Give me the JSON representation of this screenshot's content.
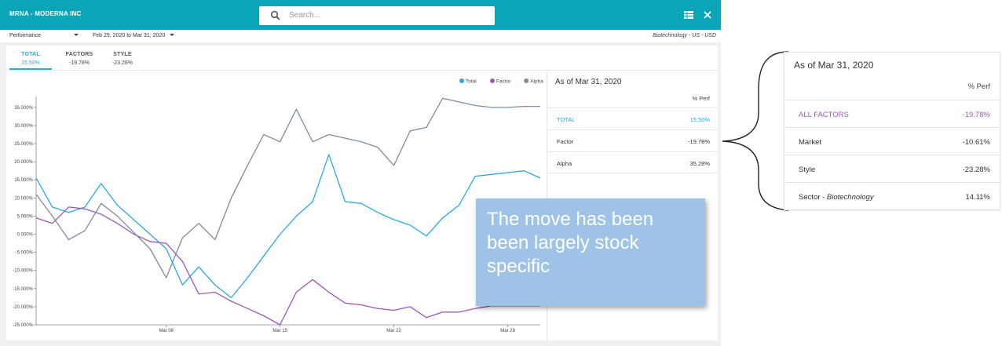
{
  "titlebar": {
    "title": "MRNA - MODERNA INC",
    "search_placeholder": "Search..."
  },
  "toolbar": {
    "metric": "Performance",
    "date_range": "Feb 29, 2020 to Mar 31, 2020",
    "context": "Biotechnology - US - USD"
  },
  "tabs": [
    {
      "label": "TOTAL",
      "value": "15.50%"
    },
    {
      "label": "FACTORS",
      "value": "-19.78%"
    },
    {
      "label": "STYLE",
      "value": "-23.28%"
    }
  ],
  "side_panel": {
    "header": "As of Mar 31, 2020",
    "column_header": "% Perf",
    "rows": [
      {
        "name": "TOTAL",
        "value": "15.50%"
      },
      {
        "name": "Factor",
        "value": "-19.78%"
      },
      {
        "name": "Alpha",
        "value": "35.28%"
      }
    ]
  },
  "callout": {
    "text": "The move has been been largely stock specific"
  },
  "zoom_panel": {
    "header": "As of Mar 31, 2020",
    "column_header": "% Perf",
    "rows": [
      {
        "name": "ALL FACTORS",
        "value": "-19.78%"
      },
      {
        "name": "Market",
        "value": "-10.61%"
      },
      {
        "name": "Style",
        "value": "-23.28%"
      },
      {
        "name_prefix": "Sector - ",
        "name_italic": "Biotechnology",
        "value": "14.11%"
      }
    ]
  },
  "colors": {
    "header": "#0aa6b8",
    "total": "#29a9e0",
    "factor": "#9b59b6",
    "alpha": "#7f8c9a",
    "callout": "#9fc3e7"
  },
  "chart_data": {
    "type": "line",
    "x_start": "2020-02-29",
    "x_end": "2020-03-31",
    "x_ticks": [
      "Mar 08",
      "Mar 15",
      "Mar 22",
      "Mar 29"
    ],
    "y_ticks": [
      "35.000%",
      "30.000%",
      "25.000%",
      "20.000%",
      "15.000%",
      "10.000%",
      "5.000%",
      "0.000%",
      "-5.000%",
      "-10.000%",
      "-15.000%",
      "-20.000%",
      "-25.000%"
    ],
    "ylim": [
      -25,
      38
    ],
    "legend": [
      "Total",
      "Factor",
      "Alpha"
    ],
    "legend_position": "top-right",
    "series": [
      {
        "name": "Total",
        "color": "#29a9e0",
        "x": [
          "2020-02-29",
          "2020-03-01",
          "2020-03-02",
          "2020-03-03",
          "2020-03-04",
          "2020-03-05",
          "2020-03-06",
          "2020-03-07",
          "2020-03-08",
          "2020-03-09",
          "2020-03-10",
          "2020-03-11",
          "2020-03-12",
          "2020-03-13",
          "2020-03-14",
          "2020-03-15",
          "2020-03-16",
          "2020-03-17",
          "2020-03-18",
          "2020-03-19",
          "2020-03-20",
          "2020-03-21",
          "2020-03-22",
          "2020-03-23",
          "2020-03-24",
          "2020-03-25",
          "2020-03-26",
          "2020-03-27",
          "2020-03-28",
          "2020-03-29",
          "2020-03-30",
          "2020-03-31"
        ],
        "y": [
          15.5,
          7.5,
          6,
          7.5,
          14,
          8,
          4,
          0,
          -4,
          -14,
          -9,
          -14,
          -17.5,
          -12,
          -6,
          0,
          5,
          9,
          22,
          9,
          8.5,
          6,
          4,
          2.5,
          -0.5,
          4.5,
          8,
          16,
          16.5,
          17,
          17.5,
          15.5
        ]
      },
      {
        "name": "Factor",
        "color": "#9b59b6",
        "x": [
          "2020-02-29",
          "2020-03-01",
          "2020-03-02",
          "2020-03-03",
          "2020-03-04",
          "2020-03-05",
          "2020-03-06",
          "2020-03-07",
          "2020-03-08",
          "2020-03-09",
          "2020-03-10",
          "2020-03-11",
          "2020-03-12",
          "2020-03-13",
          "2020-03-14",
          "2020-03-15",
          "2020-03-16",
          "2020-03-17",
          "2020-03-18",
          "2020-03-19",
          "2020-03-20",
          "2020-03-21",
          "2020-03-22",
          "2020-03-23",
          "2020-03-24",
          "2020-03-25",
          "2020-03-26",
          "2020-03-27",
          "2020-03-28",
          "2020-03-29",
          "2020-03-30",
          "2020-03-31"
        ],
        "y": [
          4.5,
          3,
          7.5,
          7,
          5.5,
          3,
          0,
          -2,
          -2.5,
          -7.5,
          -16.5,
          -16,
          -18.5,
          -20.5,
          -22.5,
          -25,
          -16,
          -12.5,
          -16,
          -19,
          -19.5,
          -20.5,
          -21,
          -20,
          -23,
          -21.5,
          -21.5,
          -20.5,
          -19.78,
          -19.78,
          -19.78,
          -19.78
        ]
      },
      {
        "name": "Alpha",
        "color": "#7f8c9a",
        "x": [
          "2020-02-29",
          "2020-03-01",
          "2020-03-02",
          "2020-03-03",
          "2020-03-04",
          "2020-03-05",
          "2020-03-06",
          "2020-03-07",
          "2020-03-08",
          "2020-03-09",
          "2020-03-10",
          "2020-03-11",
          "2020-03-12",
          "2020-03-13",
          "2020-03-14",
          "2020-03-15",
          "2020-03-16",
          "2020-03-17",
          "2020-03-18",
          "2020-03-19",
          "2020-03-20",
          "2020-03-21",
          "2020-03-22",
          "2020-03-23",
          "2020-03-24",
          "2020-03-25",
          "2020-03-26",
          "2020-03-27",
          "2020-03-28",
          "2020-03-29",
          "2020-03-30",
          "2020-03-31"
        ],
        "y": [
          11,
          5,
          -1.5,
          1,
          8.5,
          5,
          0.5,
          -4,
          -12,
          -1,
          3,
          -1.5,
          10,
          19,
          27.5,
          25.5,
          34.5,
          25.5,
          27.5,
          26.5,
          25.5,
          24,
          19,
          28.5,
          29.5,
          37.5,
          36.5,
          35.5,
          35,
          35,
          35.28,
          35.28
        ]
      }
    ]
  }
}
